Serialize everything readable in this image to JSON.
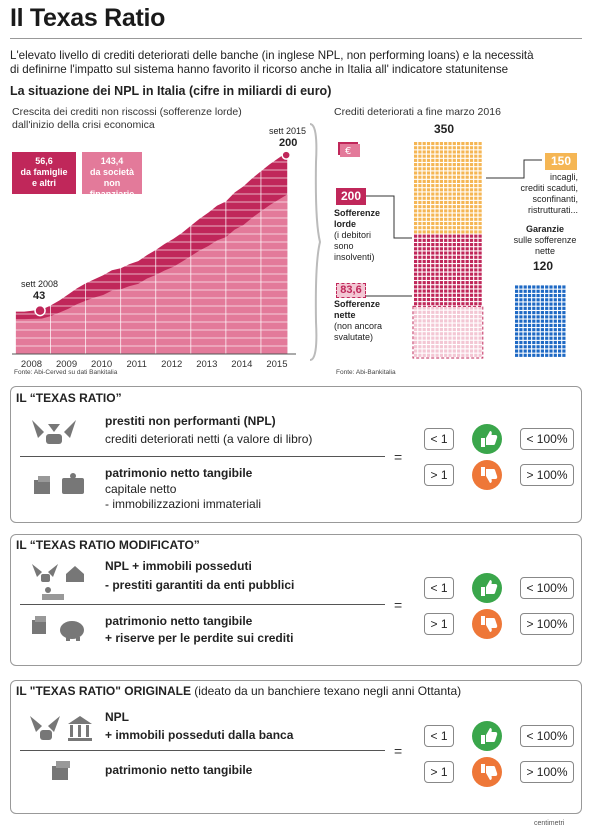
{
  "header": {
    "title": "Il Texas Ratio",
    "intro_line1": "L'elevato livello di crediti deteriorati delle banche (in inglese NPL, non performing loans) e la necessità",
    "intro_line2": "di definirne l'impatto sul sistema hanno favorito il ricorso anche in Italia all' indicatore statunitense",
    "subtitle": "La situazione dei NPL in Italia (cifre in miliardi di euro)"
  },
  "left_chart": {
    "caption1": "Crescita dei crediti non riscossi (sofferenze lorde)",
    "caption2": "dall'inizio della crisi economica",
    "label_start_date": "sett 2008",
    "label_start_value": "43",
    "label_end_date": "sett 2015",
    "label_end_value": "200",
    "legend_families_value": "56,6",
    "legend_families_l1": "da famiglie",
    "legend_families_l2": "e altri",
    "legend_companies_value": "143,4",
    "legend_companies_l1": "da società",
    "legend_companies_l2": "non finanziarie",
    "source": "Fonte: Abi-Cerved su dati Bankitalia"
  },
  "right_chart": {
    "caption": "Crediti deteriorati a fine marzo 2016",
    "total": "350",
    "incagli_value": "150",
    "incagli_l1": "incagli,",
    "incagli_l2": "crediti scaduti,",
    "incagli_l3": "sconfinanti,",
    "incagli_l4": "ristrutturati...",
    "lorde_value": "200",
    "lorde_l1": "Sofferenze",
    "lorde_l2": "lorde",
    "lorde_l3": "(i debitori",
    "lorde_l4": "sono",
    "lorde_l5": "insolventi)",
    "nette_value": "83,6",
    "nette_l1": "Sofferenze",
    "nette_l2": "nette",
    "nette_l3": "(non ancora",
    "nette_l4": "svalutate)",
    "garanzie_l1": "Garanzie",
    "garanzie_l2": "sulle sofferenze",
    "garanzie_l3": "nette",
    "garanzie_value": "120",
    "source": "Fonte: Abi-Bankitalia"
  },
  "chart_data": [
    {
      "type": "area",
      "title": "Crescita dei crediti non riscossi (sofferenze lorde) dall'inizio della crisi economica",
      "categories": [
        "2008",
        "2009",
        "2010",
        "2011",
        "2012",
        "2013",
        "2014",
        "2015"
      ],
      "x": [
        2008.0,
        2008.25,
        2008.5,
        2008.75,
        2009.0,
        2009.25,
        2009.5,
        2009.75,
        2010.0,
        2010.25,
        2010.5,
        2010.75,
        2011.0,
        2011.25,
        2011.5,
        2011.75,
        2012.0,
        2012.25,
        2012.5,
        2012.75,
        2013.0,
        2013.25,
        2013.5,
        2013.75,
        2014.0,
        2014.25,
        2014.5,
        2014.75,
        2015.0,
        2015.25,
        2015.5,
        2015.75
      ],
      "series": [
        {
          "name": "da famiglie e altri",
          "values": [
            10,
            10,
            11,
            12,
            14,
            16,
            19,
            21,
            23,
            24,
            26,
            27,
            28,
            29,
            30,
            31,
            33,
            35,
            37,
            38,
            40,
            42,
            44,
            46,
            47,
            49,
            51,
            52,
            53,
            54,
            55,
            56
          ]
        },
        {
          "name": "totale (sofferenze lorde)",
          "values": [
            42,
            42,
            43,
            44,
            48,
            53,
            59,
            65,
            70,
            74,
            78,
            83,
            85,
            89,
            92,
            98,
            103,
            109,
            114,
            120,
            127,
            134,
            140,
            147,
            151,
            160,
            166,
            174,
            181,
            188,
            194,
            200
          ]
        }
      ],
      "annotations": [
        {
          "x": "sett 2008",
          "y": 43
        },
        {
          "x": "sett 2015",
          "y": 200
        }
      ],
      "ylim": [
        0,
        210
      ]
    },
    {
      "type": "bar",
      "title": "Crediti deteriorati a fine marzo 2016",
      "categories": [
        "Crediti deteriorati",
        "Garanzie sulle sofferenze nette"
      ],
      "series": [
        {
          "name": "Sofferenze nette",
          "values": [
            83.6,
            0
          ]
        },
        {
          "name": "Sofferenze lorde",
          "values": [
            200,
            0
          ]
        },
        {
          "name": "incagli, crediti scaduti, sconfinanti, ristrutturati...",
          "values": [
            150,
            0
          ]
        },
        {
          "name": "Garanzie",
          "values": [
            0,
            120
          ]
        }
      ],
      "totals": [
        350,
        120
      ]
    }
  ],
  "colors": {
    "dark_red": "#c0275a",
    "pink": "#e37a9a",
    "light_pink": "#f3c7d4",
    "orange": "#f5b654",
    "blue": "#1e69c4",
    "green": "#3aa64b",
    "red_orange": "#ee7738"
  },
  "section1": {
    "title": "IL “TEXAS RATIO”",
    "num_l1": "prestiti non performanti (NPL)",
    "num_l2": "crediti deteriorati netti (a valore di libro)",
    "den_l1": "patrimonio netto tangibile",
    "den_l2": "capitale netto",
    "den_l3": "- immobilizzazioni immateriali",
    "eq": "=",
    "cond_lt": "< 1",
    "cond_gt": "> 1",
    "pct_lt": "< 100%",
    "pct_gt": "> 100%"
  },
  "section2": {
    "title": "IL “TEXAS RATIO MODIFICATO”",
    "num_l1": "NPL + immobili posseduti",
    "num_l2": "-  prestiti garantiti da enti pubblici",
    "den_l1": "patrimonio netto tangibile",
    "den_l2": "+ riserve per le perdite sui crediti",
    "eq": "=",
    "cond_lt": "< 1",
    "cond_gt": "> 1",
    "pct_lt": "< 100%",
    "pct_gt": "> 100%"
  },
  "section3": {
    "title": "IL \"TEXAS RATIO\" ORIGINALE",
    "title_note": "(ideato da un banchiere texano negli anni Ottanta)",
    "num_l1": "NPL",
    "num_l2": "+ immobili posseduti dalla banca",
    "den_l1": "patrimonio netto tangibile",
    "eq": "=",
    "cond_lt": "< 1",
    "cond_gt": "> 1",
    "pct_lt": "< 100%",
    "pct_gt": "> 100%"
  },
  "footer": {
    "credit": "centimetri"
  }
}
